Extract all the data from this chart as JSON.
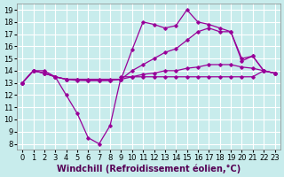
{
  "background_color": "#c8ecec",
  "line_color": "#990099",
  "grid_color": "#ffffff",
  "xlabel": "Windchill (Refroidissement éolien,°C)",
  "xlabel_fontsize": 7,
  "tick_fontsize": 6,
  "xlim": [
    -0.5,
    23.5
  ],
  "ylim": [
    7.5,
    19.5
  ],
  "yticks": [
    8,
    9,
    10,
    11,
    12,
    13,
    14,
    15,
    16,
    17,
    18,
    19
  ],
  "xticks": [
    0,
    1,
    2,
    3,
    4,
    5,
    6,
    7,
    8,
    9,
    10,
    11,
    12,
    13,
    14,
    15,
    16,
    17,
    18,
    19,
    20,
    21,
    22,
    23
  ],
  "series": [
    {
      "x": [
        0,
        1,
        2,
        3,
        4,
        5,
        6,
        7,
        8,
        9,
        10,
        11,
        12,
        13,
        14,
        15,
        16,
        17,
        18,
        19,
        20,
        21,
        22,
        23
      ],
      "y": [
        13,
        14,
        14,
        13.5,
        12,
        10.5,
        8.5,
        8,
        9.5,
        13.5,
        13.5,
        13.5,
        13.5,
        13.5,
        13.5,
        13.5,
        13.5,
        13.5,
        13.5,
        13.5,
        13.5,
        13.5,
        14,
        13.8
      ]
    },
    {
      "x": [
        0,
        1,
        2,
        3,
        4,
        5,
        6,
        7,
        8,
        9,
        10,
        11,
        12,
        13,
        14,
        15,
        16,
        17,
        18,
        19,
        20,
        21,
        22,
        23
      ],
      "y": [
        13,
        14,
        13.8,
        13.5,
        13.3,
        13.3,
        13.3,
        13.3,
        13.3,
        13.3,
        13.5,
        13.7,
        13.8,
        14,
        14,
        14.2,
        14.3,
        14.5,
        14.5,
        14.5,
        14.3,
        14.2,
        14,
        13.8
      ]
    },
    {
      "x": [
        0,
        1,
        2,
        3,
        4,
        5,
        6,
        7,
        8,
        9,
        10,
        11,
        12,
        13,
        14,
        15,
        16,
        17,
        18,
        19,
        20,
        21,
        22,
        23
      ],
      "y": [
        13,
        14,
        13.8,
        13.5,
        13.3,
        13.3,
        13.2,
        13.2,
        13.2,
        13.3,
        14,
        14.5,
        15,
        15.5,
        15.8,
        16.5,
        17.2,
        17.5,
        17.2,
        17.2,
        14.8,
        15.2,
        14,
        13.8
      ]
    },
    {
      "x": [
        0,
        1,
        2,
        3,
        4,
        5,
        6,
        7,
        8,
        9,
        10,
        11,
        12,
        13,
        14,
        15,
        16,
        17,
        18,
        19,
        20,
        21,
        22,
        23
      ],
      "y": [
        13,
        14,
        13.8,
        13.5,
        13.3,
        13.2,
        13.2,
        13.2,
        13.2,
        13.3,
        15.7,
        18,
        17.8,
        17.5,
        17.7,
        19,
        18,
        17.8,
        17.5,
        17.2,
        15,
        15.2,
        14,
        13.8
      ]
    }
  ]
}
